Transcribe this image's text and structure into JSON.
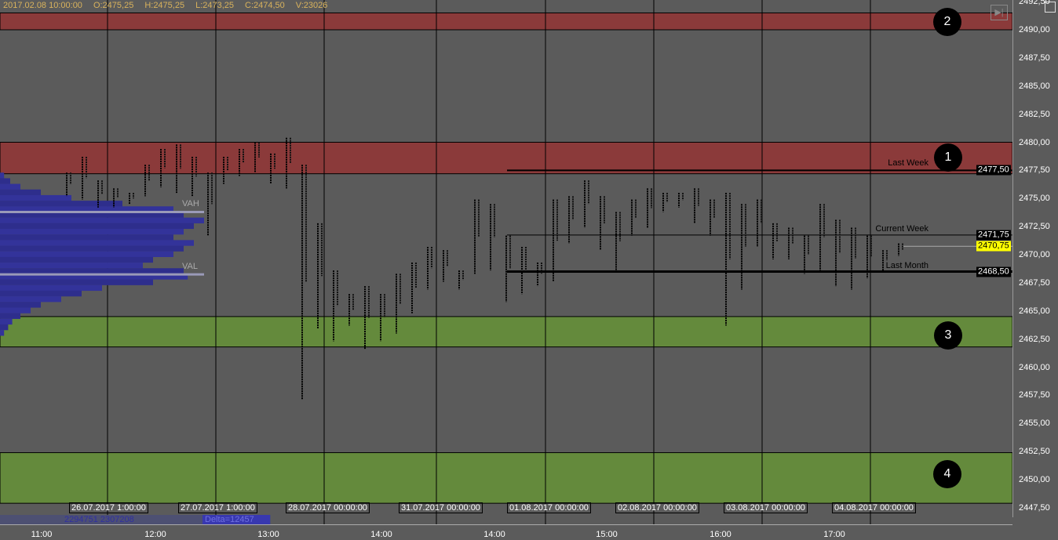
{
  "header": {
    "date": "2017.02.08 10:00:00",
    "open": "O:2475,25",
    "high": "H:2475,25",
    "low": "L:2473,25",
    "close": "C:2474,50",
    "volume": "V:23026"
  },
  "footer": {
    "volume_pair": "2294751 2307208",
    "delta": "Delta=12457"
  },
  "levels": {
    "last_week": {
      "label": "Last Week",
      "value": "2477,50"
    },
    "current_week": {
      "label": "Current Week",
      "value": "2471,75"
    },
    "last_month": {
      "label": "Last Month",
      "value": "2468,50"
    },
    "current_price": "2470,75",
    "vah": "VAH",
    "val": "VAL"
  },
  "zones": [
    {
      "number": "1",
      "color": "#8b3a3a"
    },
    {
      "number": "2",
      "color": "#8b3a3a"
    },
    {
      "number": "3",
      "color": "#648a3c"
    },
    {
      "number": "4",
      "color": "#648a3c"
    }
  ],
  "colors": {
    "background": "#5b5b5b",
    "profile": "#2e2e8c",
    "bar": "#000000",
    "current_tag": "#ffff00"
  },
  "icons": {
    "skip": "skip-to-end-icon",
    "corner": "window-toggle-icon"
  },
  "chart_data": {
    "type": "bar",
    "subtype": "range-bars with volume profile",
    "ylim": [
      2446.9,
      2492.6
    ],
    "grid": true,
    "y_ticks": [
      "2492,50",
      "2490,00",
      "2487,50",
      "2485,00",
      "2482,50",
      "2480,00",
      "2477,50",
      "2475,00",
      "2472,50",
      "2470,00",
      "2467,50",
      "2465,00",
      "2462,50",
      "2460,00",
      "2457,50",
      "2455,00",
      "2452,50",
      "2450,00",
      "2447,50"
    ],
    "x_ticks": [
      "11:00",
      "12:00",
      "13:00",
      "14:00",
      "14:00",
      "15:00",
      "16:00",
      "17:00"
    ],
    "date_labels": [
      "26.07.2017 1:00:00",
      "27.07.2017 1:00:00",
      "28.07.2017 00:00:00",
      "31.07.2017 00:00:00",
      "01.08.2017 00:00:00",
      "02.08.2017 00:00:00",
      "03.08.2017 00:00:00",
      "04.08.2017 00:00:00"
    ],
    "zones": [
      {
        "name": "1",
        "from": 2477.2,
        "to": 2480.0
      },
      {
        "name": "2",
        "from": 2490.0,
        "to": 2491.5
      },
      {
        "name": "3",
        "from": 2461.8,
        "to": 2464.5
      },
      {
        "name": "4",
        "from": 2447.9,
        "to": 2452.4
      }
    ],
    "lines": {
      "last_week": 2477.5,
      "current_week": 2471.75,
      "last_month": 2468.5,
      "current_price": 2470.75,
      "vah": 2473.8,
      "val": 2468.25
    },
    "bars": [
      [
        2477.3,
        2475.2
      ],
      [
        2478.7,
        2474.9
      ],
      [
        2476.6,
        2474.2
      ],
      [
        2475.9,
        2474.2
      ],
      [
        2475.5,
        2474.5
      ],
      [
        2478.0,
        2475.2
      ],
      [
        2479.4,
        2476.0
      ],
      [
        2479.8,
        2475.5
      ],
      [
        2478.7,
        2475.2
      ],
      [
        2477.3,
        2471.7
      ],
      [
        2478.7,
        2476.3
      ],
      [
        2479.4,
        2477.0
      ],
      [
        2480.0,
        2477.3
      ],
      [
        2479.0,
        2476.3
      ],
      [
        2480.4,
        2475.9
      ],
      [
        2478.0,
        2457.1
      ],
      [
        2472.8,
        2463.4
      ],
      [
        2468.6,
        2462.3
      ],
      [
        2466.5,
        2463.7
      ],
      [
        2467.2,
        2461.6
      ],
      [
        2466.5,
        2462.3
      ],
      [
        2468.3,
        2463.0
      ],
      [
        2469.3,
        2464.8
      ],
      [
        2470.7,
        2466.9
      ],
      [
        2470.4,
        2467.6
      ],
      [
        2468.6,
        2466.9
      ],
      [
        2474.9,
        2468.3
      ],
      [
        2474.5,
        2468.6
      ],
      [
        2471.7,
        2465.8
      ],
      [
        2470.7,
        2466.5
      ],
      [
        2469.3,
        2467.2
      ],
      [
        2474.9,
        2467.6
      ],
      [
        2475.2,
        2471.0
      ],
      [
        2476.6,
        2472.4
      ],
      [
        2475.2,
        2470.4
      ],
      [
        2473.8,
        2468.6
      ],
      [
        2474.9,
        2471.7
      ],
      [
        2475.9,
        2472.4
      ],
      [
        2475.5,
        2473.8
      ],
      [
        2475.5,
        2474.2
      ],
      [
        2475.9,
        2472.8
      ],
      [
        2474.9,
        2471.7
      ],
      [
        2475.5,
        2463.7
      ],
      [
        2474.5,
        2466.9
      ],
      [
        2474.9,
        2470.7
      ],
      [
        2472.8,
        2469.6
      ],
      [
        2472.4,
        2469.6
      ],
      [
        2471.7,
        2468.3
      ],
      [
        2474.5,
        2468.6
      ],
      [
        2473.1,
        2467.2
      ],
      [
        2472.4,
        2466.9
      ],
      [
        2471.7,
        2467.9
      ],
      [
        2470.4,
        2468.6
      ],
      [
        2471.0,
        2469.9
      ]
    ],
    "volume_profile": {
      "top_price": 2477.3,
      "step": 0.5,
      "relative_volume": [
        0.02,
        0.05,
        0.1,
        0.2,
        0.35,
        0.6,
        0.85,
        0.9,
        1.0,
        0.95,
        0.9,
        0.85,
        0.95,
        0.9,
        0.85,
        0.75,
        0.7,
        0.9,
        0.92,
        0.75,
        0.5,
        0.4,
        0.3,
        0.2,
        0.15,
        0.1,
        0.06,
        0.04,
        0.02
      ]
    }
  }
}
